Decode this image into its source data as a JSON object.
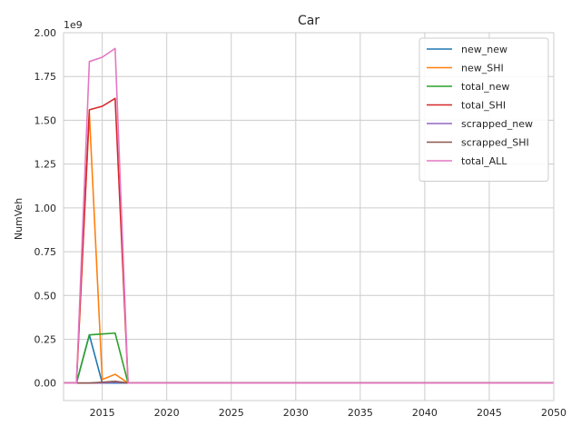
{
  "chart_data": {
    "type": "line",
    "title": "Car",
    "xlabel": "",
    "ylabel": "NumVeh",
    "y_scale_label": "1e9",
    "xlim": [
      2012,
      2050
    ],
    "ylim": [
      -0.1,
      2.0
    ],
    "x_ticks": [
      2015,
      2020,
      2025,
      2030,
      2035,
      2040,
      2045,
      2050
    ],
    "x_tick_labels": [
      "2015",
      "2020",
      "2025",
      "2030",
      "2035",
      "2040",
      "2045",
      "2050"
    ],
    "y_ticks": [
      0.0,
      0.25,
      0.5,
      0.75,
      1.0,
      1.25,
      1.5,
      1.75,
      2.0
    ],
    "y_tick_labels": [
      "0.00",
      "0.25",
      "0.50",
      "0.75",
      "1.00",
      "1.25",
      "1.50",
      "1.75",
      "2.00"
    ],
    "grid": true,
    "legend_position": "top-right",
    "series": [
      {
        "name": "new_new",
        "color": "#1f77b4",
        "points": [
          [
            2012,
            0
          ],
          [
            2013,
            0
          ],
          [
            2014,
            0.275
          ],
          [
            2015,
            0
          ],
          [
            2016,
            0
          ],
          [
            2017,
            0
          ],
          [
            2050,
            0
          ]
        ]
      },
      {
        "name": "new_SHI",
        "color": "#ff7f0e",
        "points": [
          [
            2012,
            0
          ],
          [
            2013,
            0
          ],
          [
            2014,
            1.54
          ],
          [
            2015,
            0.02
          ],
          [
            2016,
            0.05
          ],
          [
            2017,
            0
          ],
          [
            2050,
            0
          ]
        ]
      },
      {
        "name": "total_new",
        "color": "#2ca02c",
        "points": [
          [
            2012,
            0
          ],
          [
            2013,
            0
          ],
          [
            2014,
            0.275
          ],
          [
            2015,
            0.28
          ],
          [
            2016,
            0.285
          ],
          [
            2017,
            0
          ],
          [
            2050,
            0
          ]
        ]
      },
      {
        "name": "total_SHI",
        "color": "#d62728",
        "points": [
          [
            2012,
            0
          ],
          [
            2013,
            0
          ],
          [
            2014,
            1.56
          ],
          [
            2015,
            1.58
          ],
          [
            2016,
            1.625
          ],
          [
            2017,
            0
          ],
          [
            2050,
            0
          ]
        ]
      },
      {
        "name": "scrapped_new",
        "color": "#9467bd",
        "points": [
          [
            2012,
            0
          ],
          [
            2013,
            0
          ],
          [
            2014,
            0
          ],
          [
            2015,
            0
          ],
          [
            2016,
            0.005
          ],
          [
            2017,
            0
          ],
          [
            2050,
            0
          ]
        ]
      },
      {
        "name": "scrapped_SHI",
        "color": "#8c564b",
        "points": [
          [
            2012,
            0
          ],
          [
            2013,
            0
          ],
          [
            2014,
            0
          ],
          [
            2015,
            0.005
          ],
          [
            2016,
            0.01
          ],
          [
            2017,
            0
          ],
          [
            2050,
            0
          ]
        ]
      },
      {
        "name": "total_ALL",
        "color": "#e377c2",
        "points": [
          [
            2012,
            0
          ],
          [
            2013,
            0
          ],
          [
            2014,
            1.835
          ],
          [
            2015,
            1.86
          ],
          [
            2016,
            1.91
          ],
          [
            2017,
            0
          ],
          [
            2050,
            0
          ]
        ]
      }
    ]
  }
}
